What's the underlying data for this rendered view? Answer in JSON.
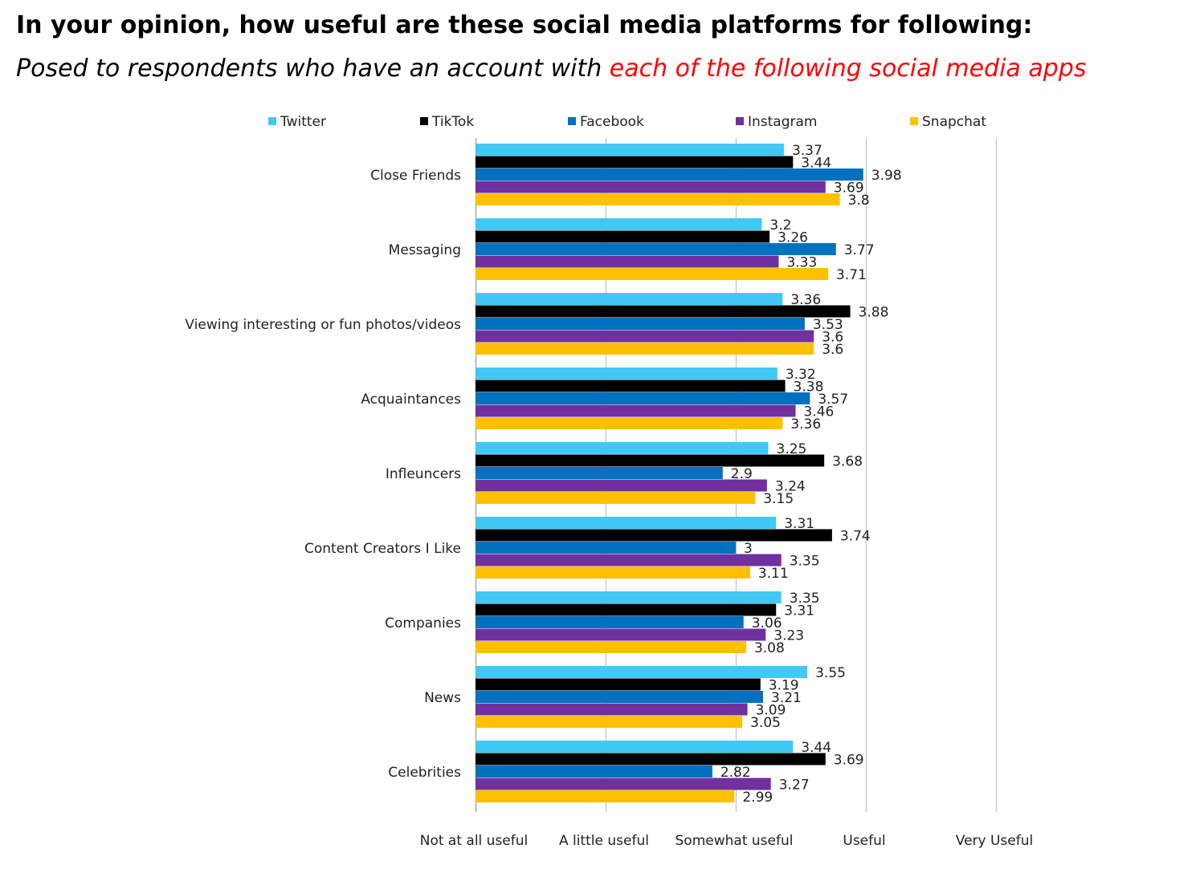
{
  "title": "In your opinion, how useful are these social media platforms for following:",
  "subtitle": {
    "prefix": "Posed to respondents who have an account with ",
    "highlight": "each of the following social media apps"
  },
  "chart_data": {
    "type": "bar",
    "orientation": "horizontal",
    "categories": [
      "Close Friends",
      "Messaging",
      "Viewing interesting or fun photos/videos",
      "Acquaintances",
      "Infleuncers",
      "Content Creators I Like",
      "Companies",
      "News",
      "Celebrities"
    ],
    "series": [
      {
        "name": "Twitter",
        "color": "#41c8f5",
        "values": [
          3.37,
          3.2,
          3.36,
          3.32,
          3.25,
          3.31,
          3.35,
          3.55,
          3.44
        ]
      },
      {
        "name": "TikTok",
        "color": "#000000",
        "values": [
          3.44,
          3.26,
          3.88,
          3.38,
          3.68,
          3.74,
          3.31,
          3.19,
          3.69
        ]
      },
      {
        "name": "Facebook",
        "color": "#0070c0",
        "values": [
          3.98,
          3.77,
          3.53,
          3.57,
          2.9,
          3,
          3.06,
          3.21,
          2.82
        ]
      },
      {
        "name": "Instagram",
        "color": "#7030a0",
        "values": [
          3.69,
          3.33,
          3.6,
          3.46,
          3.24,
          3.35,
          3.23,
          3.09,
          3.27
        ]
      },
      {
        "name": "Snapchat",
        "color": "#ffc000",
        "values": [
          3.8,
          3.71,
          3.6,
          3.36,
          3.15,
          3.11,
          3.08,
          3.05,
          2.99
        ]
      }
    ],
    "xlim": [
      1,
      5
    ],
    "x_tick_labels": [
      "Not at all useful",
      "A little useful",
      "Somewhat  useful",
      "Useful",
      "Very Useful"
    ],
    "legend_position": "top",
    "grid": true
  }
}
